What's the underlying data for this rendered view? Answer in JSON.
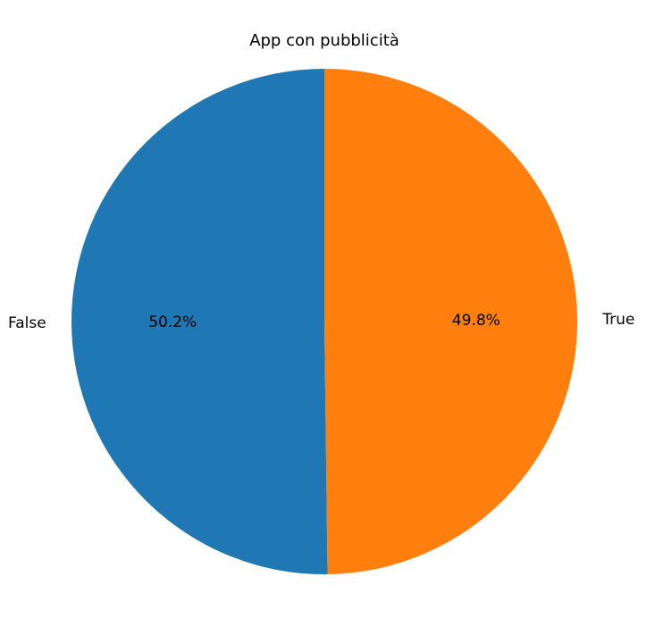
{
  "chart_data": {
    "type": "pie",
    "title": "App con pubblicità",
    "slices": [
      {
        "label": "False",
        "value": 50.2,
        "pct_label": "50.2%",
        "color": "#1f77b4"
      },
      {
        "label": "True",
        "value": 49.8,
        "pct_label": "49.8%",
        "color": "#ff7f0e"
      }
    ],
    "start_angle": 90,
    "direction": "counterclockwise",
    "legend": "none"
  }
}
